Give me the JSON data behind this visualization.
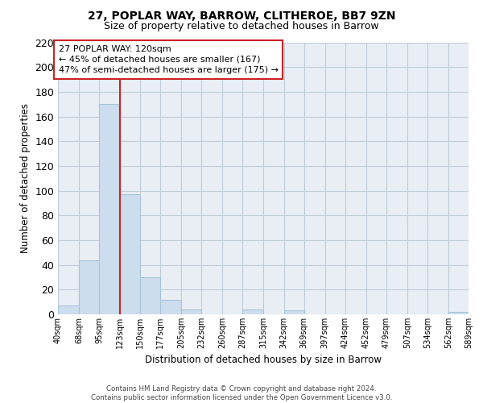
{
  "title": "27, POPLAR WAY, BARROW, CLITHEROE, BB7 9ZN",
  "subtitle": "Size of property relative to detached houses in Barrow",
  "xlabel": "Distribution of detached houses by size in Barrow",
  "ylabel": "Number of detached properties",
  "bar_edges": [
    40,
    68,
    95,
    123,
    150,
    177,
    205,
    232,
    260,
    287,
    315,
    342,
    369,
    397,
    424,
    452,
    479,
    507,
    534,
    562,
    589
  ],
  "bar_heights": [
    7,
    44,
    170,
    97,
    30,
    12,
    4,
    0,
    0,
    4,
    0,
    3,
    0,
    0,
    0,
    0,
    0,
    0,
    0,
    2
  ],
  "bar_color": "#ccdded",
  "bar_edgecolor": "#a8c4d8",
  "vline_x": 123,
  "vline_color": "#cc2222",
  "ylim": [
    0,
    220
  ],
  "yticks": [
    0,
    20,
    40,
    60,
    80,
    100,
    120,
    140,
    160,
    180,
    200,
    220
  ],
  "annotation_title": "27 POPLAR WAY: 120sqm",
  "annotation_line1": "← 45% of detached houses are smaller (167)",
  "annotation_line2": "47% of semi-detached houses are larger (175) →",
  "footer_line1": "Contains HM Land Registry data © Crown copyright and database right 2024.",
  "footer_line2": "Contains public sector information licensed under the Open Government Licence v3.0.",
  "tick_labels": [
    "40sqm",
    "68sqm",
    "95sqm",
    "123sqm",
    "150sqm",
    "177sqm",
    "205sqm",
    "232sqm",
    "260sqm",
    "287sqm",
    "315sqm",
    "342sqm",
    "369sqm",
    "397sqm",
    "424sqm",
    "452sqm",
    "479sqm",
    "507sqm",
    "534sqm",
    "562sqm",
    "589sqm"
  ],
  "background_color": "#ffffff",
  "plot_bg_color": "#e8eef4",
  "grid_color": "#c0ccd6",
  "title_fontsize": 10,
  "subtitle_fontsize": 9
}
